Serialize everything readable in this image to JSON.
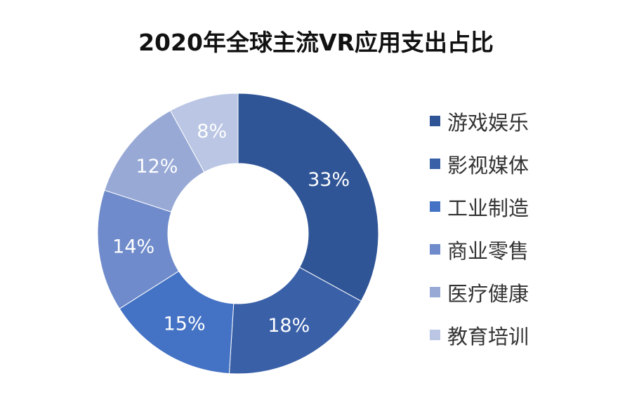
{
  "title": "2020年全球主流VR应用支出占比",
  "chart_data": {
    "type": "pie",
    "variant": "donut",
    "title": "2020年全球主流VR应用支出占比",
    "categories": [
      "游戏娱乐",
      "影视媒体",
      "工业制造",
      "商业零售",
      "医疗健康",
      "教育培训"
    ],
    "values": [
      33,
      18,
      15,
      14,
      12,
      8
    ],
    "labels": [
      "33%",
      "18%",
      "15%",
      "14%",
      "12%",
      "8%"
    ],
    "colors": [
      "#2F5597",
      "#3A60A8",
      "#4472C4",
      "#6F8BCB",
      "#98A9D6",
      "#BAC6E4"
    ],
    "unit": "%",
    "start_angle": "12 o'clock, clockwise",
    "legend_position": "right"
  },
  "legend": {
    "items": [
      {
        "label": "游戏娱乐",
        "color": "#2F5597"
      },
      {
        "label": "影视媒体",
        "color": "#3A60A8"
      },
      {
        "label": "工业制造",
        "color": "#4472C4"
      },
      {
        "label": "商业零售",
        "color": "#6F8BCB"
      },
      {
        "label": "医疗健康",
        "color": "#98A9D6"
      },
      {
        "label": "教育培训",
        "color": "#BAC6E4"
      }
    ]
  }
}
